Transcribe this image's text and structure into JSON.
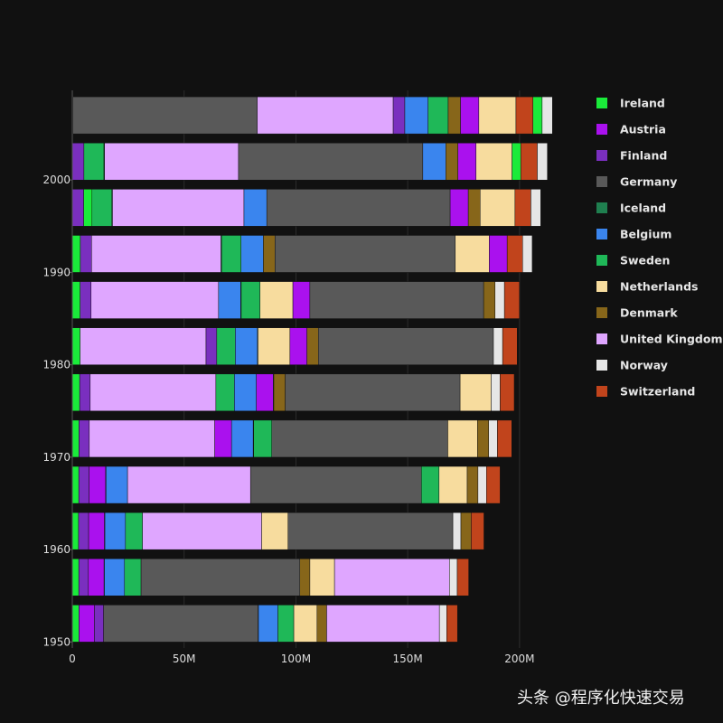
{
  "chart_data": {
    "type": "bar",
    "orientation": "horizontal",
    "stacked": true,
    "x": [
      1952,
      1957,
      1962,
      1967,
      1972,
      1977,
      1982,
      1987,
      1992,
      1997,
      2002,
      2007
    ],
    "xlim": [
      0,
      215
    ],
    "xticks": [
      0,
      50,
      100,
      150,
      200
    ],
    "xtick_labels": [
      "0",
      "50M",
      "100M",
      "150M",
      "200M"
    ],
    "yticks": [
      1950,
      1960,
      1970,
      1980,
      1990,
      2000
    ],
    "ytick_labels": [
      "1950",
      "1960",
      "1970",
      "1980",
      "1990",
      "2000"
    ],
    "legend_position": "right",
    "grid": true,
    "colors": {
      "Ireland": "#1aeb3a",
      "Austria": "#aa11ee",
      "Finland": "#7a2fbf",
      "Germany": "#595959",
      "Iceland": "#1f7f4f",
      "Belgium": "#3a85ee",
      "Sweden": "#1fb858",
      "Netherlands": "#f7dc9e",
      "Denmark": "#87661a",
      "United Kingdom": "#dfa6ff",
      "Norway": "#e6e6e6",
      "Switzerland": "#c1441c"
    },
    "legend": [
      "Ireland",
      "Austria",
      "Finland",
      "Germany",
      "Iceland",
      "Belgium",
      "Sweden",
      "Netherlands",
      "Denmark",
      "United Kingdom",
      "Norway",
      "Switzerland"
    ],
    "bars": [
      {
        "year": 1952,
        "segments": [
          {
            "name": "Ireland",
            "value": 3.0
          },
          {
            "name": "Austria",
            "value": 6.9
          },
          {
            "name": "Finland",
            "value": 4.1
          },
          {
            "name": "Germany",
            "value": 69.1
          },
          {
            "name": "Iceland",
            "value": 0.15
          },
          {
            "name": "Belgium",
            "value": 8.7
          },
          {
            "name": "Sweden",
            "value": 7.1
          },
          {
            "name": "Netherlands",
            "value": 10.4
          },
          {
            "name": "Denmark",
            "value": 4.3
          },
          {
            "name": "United Kingdom",
            "value": 50.4
          },
          {
            "name": "Norway",
            "value": 3.3
          },
          {
            "name": "Switzerland",
            "value": 4.8
          }
        ]
      },
      {
        "year": 1957,
        "segments": [
          {
            "name": "Ireland",
            "value": 2.9
          },
          {
            "name": "Finland",
            "value": 4.3
          },
          {
            "name": "Austria",
            "value": 7.0
          },
          {
            "name": "Iceland",
            "value": 0.16
          },
          {
            "name": "Belgium",
            "value": 8.99
          },
          {
            "name": "Sweden",
            "value": 7.4
          },
          {
            "name": "Germany",
            "value": 71.0
          },
          {
            "name": "Denmark",
            "value": 4.5
          },
          {
            "name": "Netherlands",
            "value": 11.0
          },
          {
            "name": "United Kingdom",
            "value": 51.4
          },
          {
            "name": "Norway",
            "value": 3.5
          },
          {
            "name": "Switzerland",
            "value": 5.1
          }
        ]
      },
      {
        "year": 1962,
        "segments": [
          {
            "name": "Ireland",
            "value": 2.8
          },
          {
            "name": "Finland",
            "value": 4.5
          },
          {
            "name": "Austria",
            "value": 7.1
          },
          {
            "name": "Iceland",
            "value": 0.18
          },
          {
            "name": "Belgium",
            "value": 9.2
          },
          {
            "name": "Sweden",
            "value": 7.6
          },
          {
            "name": "United Kingdom",
            "value": 53.3
          },
          {
            "name": "Netherlands",
            "value": 11.8
          },
          {
            "name": "Germany",
            "value": 73.7
          },
          {
            "name": "Norway",
            "value": 3.6
          },
          {
            "name": "Denmark",
            "value": 4.6
          },
          {
            "name": "Switzerland",
            "value": 5.7
          }
        ]
      },
      {
        "year": 1967,
        "segments": [
          {
            "name": "Ireland",
            "value": 2.9
          },
          {
            "name": "Finland",
            "value": 4.6
          },
          {
            "name": "Austria",
            "value": 7.4
          },
          {
            "name": "Iceland",
            "value": 0.2
          },
          {
            "name": "Belgium",
            "value": 9.6
          },
          {
            "name": "United Kingdom",
            "value": 55.0
          },
          {
            "name": "Germany",
            "value": 76.4
          },
          {
            "name": "Sweden",
            "value": 7.9
          },
          {
            "name": "Netherlands",
            "value": 12.6
          },
          {
            "name": "Denmark",
            "value": 4.8
          },
          {
            "name": "Norway",
            "value": 3.8
          },
          {
            "name": "Switzerland",
            "value": 6.1
          }
        ]
      },
      {
        "year": 1972,
        "segments": [
          {
            "name": "Ireland",
            "value": 3.0
          },
          {
            "name": "Finland",
            "value": 4.6
          },
          {
            "name": "United Kingdom",
            "value": 56.1
          },
          {
            "name": "Austria",
            "value": 7.5
          },
          {
            "name": "Belgium",
            "value": 9.7
          },
          {
            "name": "Iceland",
            "value": 0.21
          },
          {
            "name": "Sweden",
            "value": 8.1
          },
          {
            "name": "Germany",
            "value": 78.7
          },
          {
            "name": "Netherlands",
            "value": 13.3
          },
          {
            "name": "Denmark",
            "value": 5.0
          },
          {
            "name": "Norway",
            "value": 3.9
          },
          {
            "name": "Switzerland",
            "value": 6.4
          }
        ]
      },
      {
        "year": 1977,
        "segments": [
          {
            "name": "Ireland",
            "value": 3.3
          },
          {
            "name": "Finland",
            "value": 4.7
          },
          {
            "name": "United Kingdom",
            "value": 56.2
          },
          {
            "name": "Sweden",
            "value": 8.3
          },
          {
            "name": "Belgium",
            "value": 9.8
          },
          {
            "name": "Austria",
            "value": 7.6
          },
          {
            "name": "Iceland",
            "value": 0.22
          },
          {
            "name": "Denmark",
            "value": 5.1
          },
          {
            "name": "Germany",
            "value": 78.2
          },
          {
            "name": "Netherlands",
            "value": 13.9
          },
          {
            "name": "Norway",
            "value": 4.0
          },
          {
            "name": "Switzerland",
            "value": 6.3
          }
        ]
      },
      {
        "year": 1982,
        "segments": [
          {
            "name": "Ireland",
            "value": 3.5
          },
          {
            "name": "United Kingdom",
            "value": 56.3
          },
          {
            "name": "Finland",
            "value": 4.8
          },
          {
            "name": "Sweden",
            "value": 8.3
          },
          {
            "name": "Belgium",
            "value": 9.9
          },
          {
            "name": "Iceland",
            "value": 0.23
          },
          {
            "name": "Netherlands",
            "value": 14.3
          },
          {
            "name": "Austria",
            "value": 7.6
          },
          {
            "name": "Denmark",
            "value": 5.1
          },
          {
            "name": "Germany",
            "value": 78.3
          },
          {
            "name": "Norway",
            "value": 4.1
          },
          {
            "name": "Switzerland",
            "value": 6.5
          }
        ]
      },
      {
        "year": 1987,
        "segments": [
          {
            "name": "Ireland",
            "value": 3.5
          },
          {
            "name": "Finland",
            "value": 4.9
          },
          {
            "name": "United Kingdom",
            "value": 57.0
          },
          {
            "name": "Belgium",
            "value": 9.9
          },
          {
            "name": "Iceland",
            "value": 0.24
          },
          {
            "name": "Sweden",
            "value": 8.4
          },
          {
            "name": "Netherlands",
            "value": 14.7
          },
          {
            "name": "Austria",
            "value": 7.6
          },
          {
            "name": "Germany",
            "value": 77.7
          },
          {
            "name": "Denmark",
            "value": 5.1
          },
          {
            "name": "Norway",
            "value": 4.2
          },
          {
            "name": "Switzerland",
            "value": 6.7
          }
        ]
      },
      {
        "year": 1992,
        "segments": [
          {
            "name": "Ireland",
            "value": 3.6
          },
          {
            "name": "Finland",
            "value": 5.0
          },
          {
            "name": "United Kingdom",
            "value": 57.9
          },
          {
            "name": "Iceland",
            "value": 0.26
          },
          {
            "name": "Sweden",
            "value": 8.7
          },
          {
            "name": "Belgium",
            "value": 10.0
          },
          {
            "name": "Denmark",
            "value": 5.2
          },
          {
            "name": "Germany",
            "value": 80.6
          },
          {
            "name": "Netherlands",
            "value": 15.2
          },
          {
            "name": "Austria",
            "value": 8.0
          },
          {
            "name": "Switzerland",
            "value": 6.9
          },
          {
            "name": "Norway",
            "value": 4.3
          }
        ]
      },
      {
        "year": 1997,
        "segments": [
          {
            "name": "Finland",
            "value": 5.1
          },
          {
            "name": "Ireland",
            "value": 3.7
          },
          {
            "name": "Sweden",
            "value": 8.9
          },
          {
            "name": "Iceland",
            "value": 0.27
          },
          {
            "name": "United Kingdom",
            "value": 58.8
          },
          {
            "name": "Belgium",
            "value": 10.2
          },
          {
            "name": "Germany",
            "value": 82.0
          },
          {
            "name": "Austria",
            "value": 8.1
          },
          {
            "name": "Denmark",
            "value": 5.3
          },
          {
            "name": "Netherlands",
            "value": 15.6
          },
          {
            "name": "Switzerland",
            "value": 7.1
          },
          {
            "name": "Norway",
            "value": 4.4
          }
        ]
      },
      {
        "year": 2002,
        "segments": [
          {
            "name": "Finland",
            "value": 5.2
          },
          {
            "name": "Sweden",
            "value": 8.95
          },
          {
            "name": "Iceland",
            "value": 0.29
          },
          {
            "name": "United Kingdom",
            "value": 59.9
          },
          {
            "name": "Germany",
            "value": 82.4
          },
          {
            "name": "Belgium",
            "value": 10.3
          },
          {
            "name": "Denmark",
            "value": 5.4
          },
          {
            "name": "Austria",
            "value": 8.1
          },
          {
            "name": "Netherlands",
            "value": 16.1
          },
          {
            "name": "Ireland",
            "value": 3.9
          },
          {
            "name": "Switzerland",
            "value": 7.4
          },
          {
            "name": "Norway",
            "value": 4.5
          }
        ]
      },
      {
        "year": 2007,
        "segments": [
          {
            "name": "Iceland",
            "value": 0.3
          },
          {
            "name": "Germany",
            "value": 82.4
          },
          {
            "name": "United Kingdom",
            "value": 60.8
          },
          {
            "name": "Finland",
            "value": 5.2
          },
          {
            "name": "Belgium",
            "value": 10.4
          },
          {
            "name": "Sweden",
            "value": 9.0
          },
          {
            "name": "Denmark",
            "value": 5.5
          },
          {
            "name": "Austria",
            "value": 8.2
          },
          {
            "name": "Netherlands",
            "value": 16.6
          },
          {
            "name": "Switzerland",
            "value": 7.6
          },
          {
            "name": "Ireland",
            "value": 4.1
          },
          {
            "name": "Norway",
            "value": 4.6
          }
        ]
      }
    ]
  },
  "watermark": {
    "brand": "头条",
    "handle": "@程序化快速交易"
  }
}
